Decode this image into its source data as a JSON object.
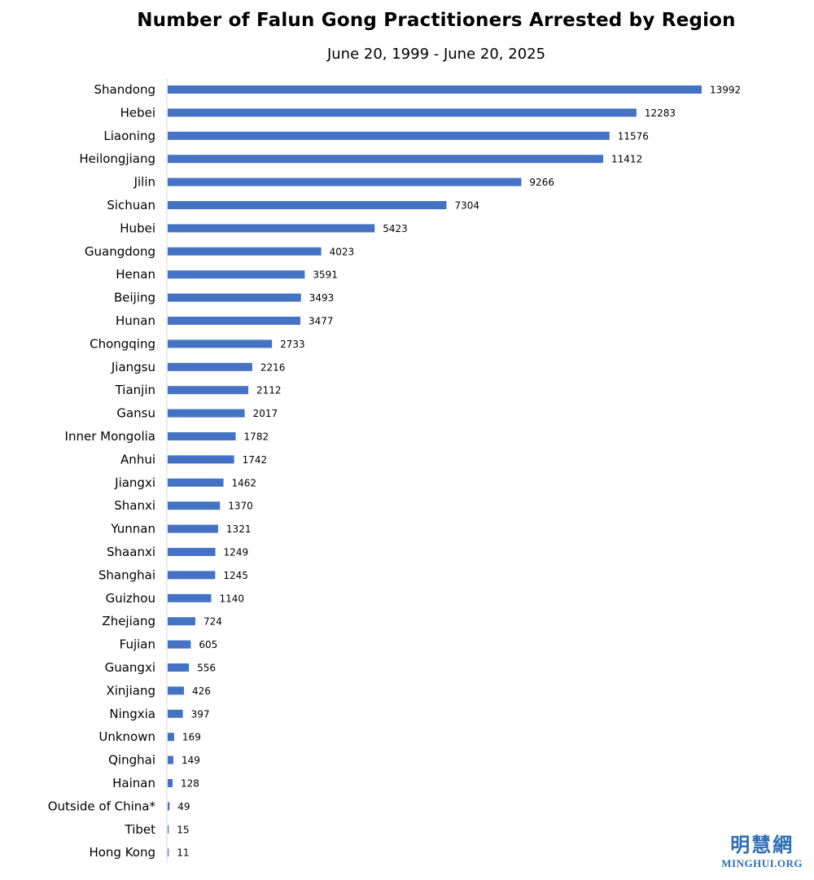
{
  "chart_data": {
    "type": "bar",
    "orientation": "horizontal",
    "title": "Number of Falun Gong Practitioners Arrested by Region",
    "subtitle": "June 20, 1999 - June 20, 2025",
    "categories": [
      "Shandong",
      "Hebei",
      "Liaoning",
      "Heilongjiang",
      "Jilin",
      "Sichuan",
      "Hubei",
      "Guangdong",
      "Henan",
      "Beijing",
      "Hunan",
      "Chongqing",
      "Jiangsu",
      "Tianjin",
      "Gansu",
      "Inner Mongolia",
      "Anhui",
      "Jiangxi",
      "Shanxi",
      "Yunnan",
      "Shaanxi",
      "Shanghai",
      "Guizhou",
      "Zhejiang",
      "Fujian",
      "Guangxi",
      "Xinjiang",
      "Ningxia",
      "Unknown",
      "Qinghai",
      "Hainan",
      "Outside of China*",
      "Tibet",
      "Hong Kong"
    ],
    "values": [
      13992,
      12283,
      11576,
      11412,
      9266,
      7304,
      5423,
      4023,
      3591,
      3493,
      3477,
      2733,
      2216,
      2112,
      2017,
      1782,
      1742,
      1462,
      1370,
      1321,
      1249,
      1245,
      1140,
      724,
      605,
      556,
      426,
      397,
      169,
      149,
      128,
      49,
      15,
      11
    ],
    "data_labels": true,
    "grid": false,
    "legend": "none",
    "bar_color": "#4472c4",
    "axis_color": "#d9d9d9"
  },
  "watermark": {
    "chinese": "明慧網",
    "english": "MINGHUI.ORG"
  }
}
